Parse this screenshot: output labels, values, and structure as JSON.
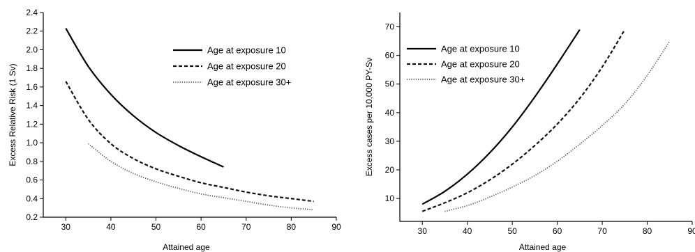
{
  "chart_data": [
    {
      "type": "line",
      "xlabel": "Attained age",
      "ylabel": "Excess Relative Risk (1 Sv)",
      "xlim": [
        25,
        90
      ],
      "ylim": [
        0.2,
        2.4
      ],
      "xticks": [
        30,
        40,
        50,
        60,
        70,
        80,
        90
      ],
      "yticks": [
        0.2,
        0.4,
        0.6,
        0.8,
        1.0,
        1.2,
        1.4,
        1.6,
        1.8,
        2.0,
        2.2,
        2.4
      ],
      "ytick_labels": [
        "0.2",
        "0.4",
        "0.6",
        "0.8",
        "1.0",
        "1.2",
        "1.4",
        "1.6",
        "1.8",
        "2.0",
        "2.2",
        "2.4"
      ],
      "legend_position": "top-right",
      "series": [
        {
          "name": "Age at exposure 10",
          "style": "solid",
          "x": [
            30,
            35,
            40,
            45,
            50,
            55,
            60,
            65
          ],
          "y": [
            2.23,
            1.82,
            1.52,
            1.29,
            1.11,
            0.97,
            0.85,
            0.74
          ]
        },
        {
          "name": "Age at exposure 20",
          "style": "dashed",
          "x": [
            30,
            35,
            40,
            45,
            50,
            55,
            60,
            65,
            70,
            75,
            80,
            85
          ],
          "y": [
            1.66,
            1.25,
            0.99,
            0.83,
            0.72,
            0.64,
            0.57,
            0.52,
            0.47,
            0.43,
            0.4,
            0.37
          ]
        },
        {
          "name": "Age at exposure 30+",
          "style": "dotted",
          "x": [
            35,
            40,
            45,
            50,
            55,
            60,
            65,
            70,
            75,
            80,
            85
          ],
          "y": [
            0.99,
            0.8,
            0.67,
            0.58,
            0.51,
            0.45,
            0.41,
            0.37,
            0.33,
            0.3,
            0.28
          ]
        }
      ]
    },
    {
      "type": "line",
      "xlabel": "Attained age",
      "ylabel": "Excess cases per 10,000 PY-Sv",
      "xlim": [
        25,
        90
      ],
      "ylim": [
        2,
        75
      ],
      "xticks": [
        30,
        40,
        50,
        60,
        70,
        80,
        90
      ],
      "yticks": [
        10,
        20,
        30,
        40,
        50,
        60,
        70
      ],
      "ytick_labels": [
        "10",
        "20",
        "30",
        "40",
        "50",
        "60",
        "70"
      ],
      "legend_position": "top-left",
      "series": [
        {
          "name": "Age at exposure 10",
          "style": "solid",
          "x": [
            30,
            35,
            40,
            45,
            50,
            55,
            60,
            65
          ],
          "y": [
            8,
            12.5,
            18.5,
            26,
            35,
            45.5,
            57,
            69
          ]
        },
        {
          "name": "Age at exposure 20",
          "style": "dashed",
          "x": [
            30,
            35,
            40,
            45,
            50,
            55,
            60,
            65,
            70,
            75
          ],
          "y": [
            5.5,
            8.5,
            12,
            16.5,
            22,
            28.5,
            36,
            45,
            56,
            69
          ]
        },
        {
          "name": "Age at exposure 30+",
          "style": "dotted",
          "x": [
            35,
            40,
            45,
            50,
            55,
            60,
            65,
            70,
            75,
            80,
            85
          ],
          "y": [
            5.5,
            7.5,
            10.5,
            14,
            18,
            23,
            29,
            35.5,
            43,
            53,
            65
          ]
        }
      ]
    }
  ]
}
